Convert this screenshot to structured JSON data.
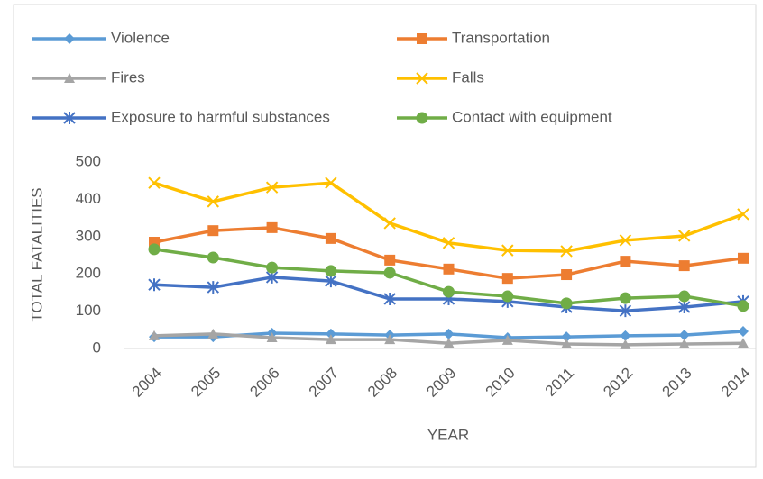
{
  "chart_data": {
    "type": "line",
    "x_label": "YEAR",
    "y_label": "TOTAL FATALITIES",
    "categories": [
      "2004",
      "2005",
      "2006",
      "2007",
      "2008",
      "2009",
      "2010",
      "2011",
      "2012",
      "2013",
      "2014"
    ],
    "ylim": [
      0,
      500
    ],
    "yticks": [
      0,
      100,
      200,
      300,
      400,
      500
    ],
    "grid": false,
    "legend": "top",
    "series": [
      {
        "name": "Violence",
        "color": "#5b9bd5",
        "marker": "diamond",
        "values": [
          31,
          31,
          41,
          39,
          36,
          39,
          29,
          31,
          34,
          36,
          46
        ]
      },
      {
        "name": "Transportation",
        "color": "#ed7d31",
        "marker": "square",
        "values": [
          285,
          316,
          324,
          295,
          237,
          213,
          188,
          198,
          234,
          222,
          242
        ]
      },
      {
        "name": "Fires",
        "color": "#a5a5a5",
        "marker": "triangle",
        "values": [
          34,
          39,
          29,
          24,
          24,
          14,
          22,
          12,
          10,
          12,
          14
        ]
      },
      {
        "name": "Falls",
        "color": "#ffc000",
        "marker": "x",
        "values": [
          444,
          394,
          432,
          444,
          336,
          283,
          263,
          261,
          290,
          302,
          360
        ]
      },
      {
        "name": "Exposure to harmful substances",
        "color": "#4472c4",
        "marker": "star",
        "values": [
          171,
          164,
          191,
          181,
          133,
          133,
          126,
          111,
          101,
          111,
          126
        ]
      },
      {
        "name": "Contact with equipment",
        "color": "#70ad47",
        "marker": "circle",
        "values": [
          266,
          244,
          217,
          208,
          203,
          152,
          140,
          121,
          135,
          140,
          114
        ]
      }
    ]
  }
}
